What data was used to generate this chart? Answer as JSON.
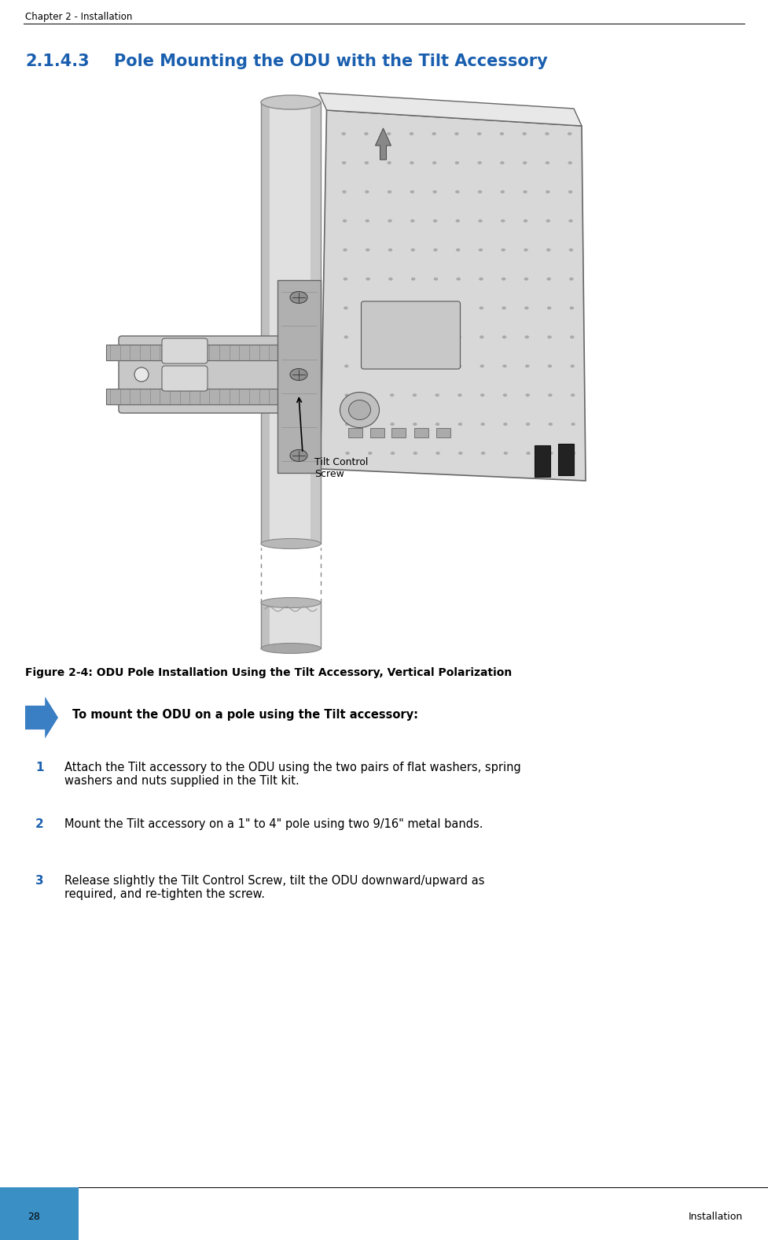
{
  "page_width": 9.77,
  "page_height": 15.76,
  "dpi": 100,
  "bg_color": "#ffffff",
  "header_text": "Chapter 2 - Installation",
  "header_font_size": 8.5,
  "header_text_color": "#000000",
  "section_number": "2.1.4.3",
  "section_title": "Pole Mounting the ODU with the Tilt Accessory",
  "section_color": "#1a5faf",
  "section_font_size": 15,
  "figure_caption": "Figure 2-4: ODU Pole Installation Using the Tilt Accessory, Vertical Polarization",
  "figure_caption_font_size": 10,
  "callout_title": "To mount the ODU on a pole using the Tilt accessory:",
  "callout_font_size": 10.5,
  "steps": [
    {
      "number": "1",
      "text": "Attach the Tilt accessory to the ODU using the two pairs of flat washers, spring\nwashers and nuts supplied in the Tilt kit."
    },
    {
      "number": "2",
      "text": "Mount the Tilt accessory on a 1\" to 4\" pole using two 9/16\" metal bands."
    },
    {
      "number": "3",
      "text": "Release slightly the Tilt Control Screw, tilt the ODU downward/upward as\nrequired, and re-tighten the screw."
    }
  ],
  "step_number_color": "#1a5faf",
  "step_font_size": 10.5,
  "step_num_font_size": 11,
  "footer_page": "28",
  "footer_right": "Installation",
  "footer_rect_color": "#3a8fc4",
  "divider_color": "#000000",
  "tilt_label": "Tilt Control\nScrew"
}
